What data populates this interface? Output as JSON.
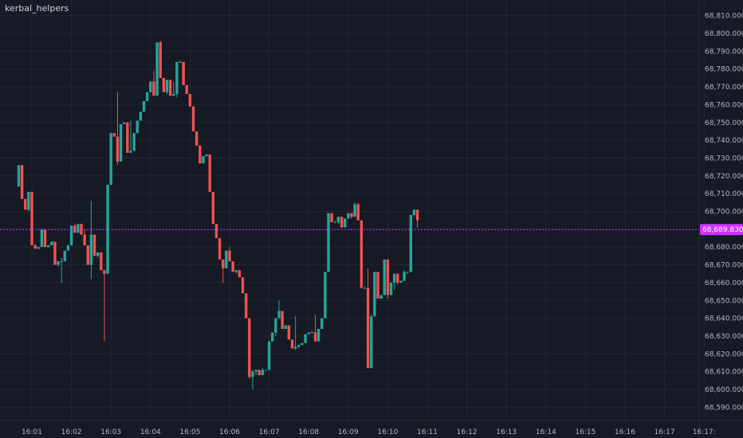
{
  "chart_data": {
    "type": "candlestick",
    "title": "kerbal_helpers",
    "xlabel": "",
    "ylabel": "",
    "ylim": [
      68585,
      68815
    ],
    "y_ticks": [
      "68,590.000",
      "68,600.000",
      "68,610.000",
      "68,620.000",
      "68,630.000",
      "68,640.000",
      "68,650.000",
      "68,660.000",
      "68,670.000",
      "68,680.000",
      "68,690.000",
      "68,700.000",
      "68,710.000",
      "68,720.000",
      "68,730.000",
      "68,740.000",
      "68,750.000",
      "68,760.000",
      "68,770.000",
      "68,780.000",
      "68,790.000",
      "68,800.000",
      "68,810.000"
    ],
    "x_ticks": [
      "16:01",
      "16:02",
      "16:03",
      "16:04",
      "16:05",
      "16:06",
      "16:07",
      "16:08",
      "16:09",
      "16:10",
      "16:11",
      "16:12",
      "16:13",
      "16:14",
      "16:15",
      "16:16",
      "16:17",
      "16:17:"
    ],
    "grid": true,
    "current_price": 68689.83,
    "current_price_label": "68,689.830",
    "colors": {
      "up": "#26a69a",
      "down": "#ef5350",
      "price_line": "#cc33ff",
      "background": "#161a25",
      "grid": "#222632"
    },
    "candles": [
      {
        "time": "16:00:40",
        "open": 68714,
        "high": 68726,
        "low": 68714,
        "close": 68726
      },
      {
        "time": "16:00:45",
        "open": 68726,
        "high": 68726,
        "low": 68707,
        "close": 68707
      },
      {
        "time": "16:00:50",
        "open": 68707,
        "high": 68707,
        "low": 68701,
        "close": 68701
      },
      {
        "time": "16:00:55",
        "open": 68701,
        "high": 68711,
        "low": 68700,
        "close": 68711
      },
      {
        "time": "16:01:00",
        "open": 68711,
        "high": 68711,
        "low": 68681,
        "close": 68681
      },
      {
        "time": "16:01:05",
        "open": 68681,
        "high": 68682,
        "low": 68679,
        "close": 68679
      },
      {
        "time": "16:01:10",
        "open": 68679,
        "high": 68680,
        "low": 68679,
        "close": 68680
      },
      {
        "time": "16:01:15",
        "open": 68680,
        "high": 68690,
        "low": 68680,
        "close": 68690
      },
      {
        "time": "16:01:20",
        "open": 68690,
        "high": 68690,
        "low": 68680,
        "close": 68680
      },
      {
        "time": "16:01:25",
        "open": 68680,
        "high": 68681,
        "low": 68680,
        "close": 68681
      },
      {
        "time": "16:01:30",
        "open": 68681,
        "high": 68683,
        "low": 68681,
        "close": 68683
      },
      {
        "time": "16:01:35",
        "open": 68683,
        "high": 68683,
        "low": 68670,
        "close": 68670
      },
      {
        "time": "16:01:40",
        "open": 68670,
        "high": 68672,
        "low": 68669,
        "close": 68672
      },
      {
        "time": "16:01:45",
        "open": 68672,
        "high": 68674,
        "low": 68660,
        "close": 68672
      },
      {
        "time": "16:01:50",
        "open": 68672,
        "high": 68678,
        "low": 68672,
        "close": 68678
      },
      {
        "time": "16:01:55",
        "open": 68678,
        "high": 68681,
        "low": 68678,
        "close": 68681
      },
      {
        "time": "16:02:00",
        "open": 68681,
        "high": 68692,
        "low": 68681,
        "close": 68692
      },
      {
        "time": "16:02:05",
        "open": 68692,
        "high": 68693,
        "low": 68688,
        "close": 68688
      },
      {
        "time": "16:02:10",
        "open": 68688,
        "high": 68693,
        "low": 68688,
        "close": 68693
      },
      {
        "time": "16:02:15",
        "open": 68693,
        "high": 68693,
        "low": 68687,
        "close": 68687
      },
      {
        "time": "16:02:20",
        "open": 68687,
        "high": 68690,
        "low": 68681,
        "close": 68681
      },
      {
        "time": "16:02:25",
        "open": 68681,
        "high": 68681,
        "low": 68670,
        "close": 68670
      },
      {
        "time": "16:02:30",
        "open": 68670,
        "high": 68706,
        "low": 68662,
        "close": 68687
      },
      {
        "time": "16:02:35",
        "open": 68687,
        "high": 68687,
        "low": 68675,
        "close": 68675
      },
      {
        "time": "16:02:40",
        "open": 68675,
        "high": 68677,
        "low": 68674,
        "close": 68677
      },
      {
        "time": "16:02:45",
        "open": 68677,
        "high": 68677,
        "low": 68667,
        "close": 68667
      },
      {
        "time": "16:02:50",
        "open": 68667,
        "high": 68667,
        "low": 68627,
        "close": 68665
      },
      {
        "time": "16:02:55",
        "open": 68665,
        "high": 68715,
        "low": 68665,
        "close": 68715
      },
      {
        "time": "16:03:00",
        "open": 68715,
        "high": 68744,
        "low": 68715,
        "close": 68744
      },
      {
        "time": "16:03:05",
        "open": 68744,
        "high": 68744,
        "low": 68742,
        "close": 68742
      },
      {
        "time": "16:03:10",
        "open": 68742,
        "high": 68767,
        "low": 68726,
        "close": 68728
      },
      {
        "time": "16:03:15",
        "open": 68728,
        "high": 68749,
        "low": 68728,
        "close": 68749
      },
      {
        "time": "16:03:20",
        "open": 68749,
        "high": 68750,
        "low": 68749,
        "close": 68750
      },
      {
        "time": "16:03:25",
        "open": 68750,
        "high": 68750,
        "low": 68733,
        "close": 68733
      },
      {
        "time": "16:03:30",
        "open": 68733,
        "high": 68751,
        "low": 68733,
        "close": 68734
      },
      {
        "time": "16:03:35",
        "open": 68734,
        "high": 68744,
        "low": 68734,
        "close": 68744
      },
      {
        "time": "16:03:40",
        "open": 68744,
        "high": 68751,
        "low": 68744,
        "close": 68751
      },
      {
        "time": "16:03:45",
        "open": 68751,
        "high": 68756,
        "low": 68751,
        "close": 68756
      },
      {
        "time": "16:03:50",
        "open": 68756,
        "high": 68762,
        "low": 68756,
        "close": 68762
      },
      {
        "time": "16:03:55",
        "open": 68762,
        "high": 68767,
        "low": 68762,
        "close": 68767
      },
      {
        "time": "16:04:00",
        "open": 68767,
        "high": 68773,
        "low": 68767,
        "close": 68773
      },
      {
        "time": "16:04:05",
        "open": 68773,
        "high": 68779,
        "low": 68765,
        "close": 68765
      },
      {
        "time": "16:04:10",
        "open": 68765,
        "high": 68795,
        "low": 68765,
        "close": 68795
      },
      {
        "time": "16:04:15",
        "open": 68795,
        "high": 68796,
        "low": 68775,
        "close": 68775
      },
      {
        "time": "16:04:20",
        "open": 68775,
        "high": 68775,
        "low": 68767,
        "close": 68767
      },
      {
        "time": "16:04:25",
        "open": 68767,
        "high": 68774,
        "low": 68766,
        "close": 68774
      },
      {
        "time": "16:04:30",
        "open": 68774,
        "high": 68774,
        "low": 68765,
        "close": 68765
      },
      {
        "time": "16:04:35",
        "open": 68765,
        "high": 68773,
        "low": 68765,
        "close": 68766
      },
      {
        "time": "16:04:40",
        "open": 68766,
        "high": 68784,
        "low": 68764,
        "close": 68784
      },
      {
        "time": "16:04:45",
        "open": 68784,
        "high": 68785,
        "low": 68784,
        "close": 68784
      },
      {
        "time": "16:04:50",
        "open": 68784,
        "high": 68784,
        "low": 68771,
        "close": 68771
      },
      {
        "time": "16:04:55",
        "open": 68771,
        "high": 68771,
        "low": 68766,
        "close": 68766
      },
      {
        "time": "16:05:00",
        "open": 68766,
        "high": 68766,
        "low": 68759,
        "close": 68759
      },
      {
        "time": "16:05:05",
        "open": 68759,
        "high": 68759,
        "low": 68745,
        "close": 68745
      },
      {
        "time": "16:05:10",
        "open": 68745,
        "high": 68745,
        "low": 68737,
        "close": 68737
      },
      {
        "time": "16:05:15",
        "open": 68737,
        "high": 68737,
        "low": 68727,
        "close": 68727
      },
      {
        "time": "16:05:20",
        "open": 68727,
        "high": 68731,
        "low": 68727,
        "close": 68731
      },
      {
        "time": "16:05:25",
        "open": 68731,
        "high": 68732,
        "low": 68731,
        "close": 68732
      },
      {
        "time": "16:05:30",
        "open": 68732,
        "high": 68732,
        "low": 68711,
        "close": 68711
      },
      {
        "time": "16:05:35",
        "open": 68711,
        "high": 68711,
        "low": 68693,
        "close": 68693
      },
      {
        "time": "16:05:40",
        "open": 68693,
        "high": 68693,
        "low": 68685,
        "close": 68685
      },
      {
        "time": "16:05:45",
        "open": 68685,
        "high": 68685,
        "low": 68673,
        "close": 68673
      },
      {
        "time": "16:05:50",
        "open": 68673,
        "high": 68673,
        "low": 68660,
        "close": 68668
      },
      {
        "time": "16:05:55",
        "open": 68668,
        "high": 68678,
        "low": 68668,
        "close": 68678
      },
      {
        "time": "16:06:00",
        "open": 68678,
        "high": 68680,
        "low": 68672,
        "close": 68672
      },
      {
        "time": "16:06:05",
        "open": 68672,
        "high": 68672,
        "low": 68666,
        "close": 68666
      },
      {
        "time": "16:06:10",
        "open": 68666,
        "high": 68667,
        "low": 68665,
        "close": 68667
      },
      {
        "time": "16:06:15",
        "open": 68667,
        "high": 68667,
        "low": 68663,
        "close": 68663
      },
      {
        "time": "16:06:20",
        "open": 68663,
        "high": 68663,
        "low": 68654,
        "close": 68654
      },
      {
        "time": "16:06:25",
        "open": 68654,
        "high": 68654,
        "low": 68640,
        "close": 68640
      },
      {
        "time": "16:06:30",
        "open": 68640,
        "high": 68640,
        "low": 68606,
        "close": 68607
      },
      {
        "time": "16:06:35",
        "open": 68607,
        "high": 68611,
        "low": 68600,
        "close": 68610
      },
      {
        "time": "16:06:40",
        "open": 68610,
        "high": 68611,
        "low": 68608,
        "close": 68611
      },
      {
        "time": "16:06:45",
        "open": 68611,
        "high": 68611,
        "low": 68608,
        "close": 68608
      },
      {
        "time": "16:06:50",
        "open": 68608,
        "high": 68612,
        "low": 68608,
        "close": 68611
      },
      {
        "time": "16:06:55",
        "open": 68611,
        "high": 68611,
        "low": 68611,
        "close": 68611
      },
      {
        "time": "16:07:00",
        "open": 68611,
        "high": 68627,
        "low": 68611,
        "close": 68627
      },
      {
        "time": "16:07:05",
        "open": 68627,
        "high": 68632,
        "low": 68627,
        "close": 68632
      },
      {
        "time": "16:07:10",
        "open": 68632,
        "high": 68640,
        "low": 68630,
        "close": 68640
      },
      {
        "time": "16:07:15",
        "open": 68640,
        "high": 68650,
        "low": 68640,
        "close": 68644
      },
      {
        "time": "16:07:20",
        "open": 68644,
        "high": 68644,
        "low": 68634,
        "close": 68634
      },
      {
        "time": "16:07:25",
        "open": 68634,
        "high": 68636,
        "low": 68634,
        "close": 68636
      },
      {
        "time": "16:07:30",
        "open": 68636,
        "high": 68636,
        "low": 68628,
        "close": 68628
      },
      {
        "time": "16:07:35",
        "open": 68628,
        "high": 68628,
        "low": 68623,
        "close": 68623
      },
      {
        "time": "16:07:40",
        "open": 68623,
        "high": 68641,
        "low": 68622,
        "close": 68624
      },
      {
        "time": "16:07:45",
        "open": 68624,
        "high": 68625,
        "low": 68623,
        "close": 68625
      },
      {
        "time": "16:07:50",
        "open": 68625,
        "high": 68626,
        "low": 68625,
        "close": 68626
      },
      {
        "time": "16:07:55",
        "open": 68626,
        "high": 68631,
        "low": 68626,
        "close": 68631
      },
      {
        "time": "16:08:00",
        "open": 68631,
        "high": 68632,
        "low": 68631,
        "close": 68632
      },
      {
        "time": "16:08:05",
        "open": 68632,
        "high": 68633,
        "low": 68632,
        "close": 68632
      },
      {
        "time": "16:08:10",
        "open": 68632,
        "high": 68642,
        "low": 68627,
        "close": 68627
      },
      {
        "time": "16:08:15",
        "open": 68627,
        "high": 68634,
        "low": 68627,
        "close": 68634
      },
      {
        "time": "16:08:20",
        "open": 68634,
        "high": 68640,
        "low": 68634,
        "close": 68640
      },
      {
        "time": "16:08:25",
        "open": 68640,
        "high": 68666,
        "low": 68640,
        "close": 68666
      },
      {
        "time": "16:08:30",
        "open": 68666,
        "high": 68699,
        "low": 68666,
        "close": 68699
      },
      {
        "time": "16:08:35",
        "open": 68699,
        "high": 68699,
        "low": 68694,
        "close": 68694
      },
      {
        "time": "16:08:40",
        "open": 68694,
        "high": 68695,
        "low": 68694,
        "close": 68694
      },
      {
        "time": "16:08:45",
        "open": 68694,
        "high": 68697,
        "low": 68693,
        "close": 68697
      },
      {
        "time": "16:08:50",
        "open": 68697,
        "high": 68697,
        "low": 68691,
        "close": 68691
      },
      {
        "time": "16:08:55",
        "open": 68691,
        "high": 68696,
        "low": 68691,
        "close": 68696
      },
      {
        "time": "16:09:00",
        "open": 68696,
        "high": 68699,
        "low": 68696,
        "close": 68699
      },
      {
        "time": "16:09:05",
        "open": 68699,
        "high": 68699,
        "low": 68696,
        "close": 68697
      },
      {
        "time": "16:09:10",
        "open": 68697,
        "high": 68705,
        "low": 68697,
        "close": 68704
      },
      {
        "time": "16:09:15",
        "open": 68704,
        "high": 68705,
        "low": 68695,
        "close": 68695
      },
      {
        "time": "16:09:20",
        "open": 68695,
        "high": 68695,
        "low": 68657,
        "close": 68657
      },
      {
        "time": "16:09:25",
        "open": 68657,
        "high": 68658,
        "low": 68657,
        "close": 68657
      },
      {
        "time": "16:09:30",
        "open": 68657,
        "high": 68668,
        "low": 68612,
        "close": 68612
      },
      {
        "time": "16:09:35",
        "open": 68612,
        "high": 68642,
        "low": 68612,
        "close": 68641
      },
      {
        "time": "16:09:40",
        "open": 68641,
        "high": 68666,
        "low": 68641,
        "close": 68666
      },
      {
        "time": "16:09:45",
        "open": 68666,
        "high": 68666,
        "low": 68651,
        "close": 68651
      },
      {
        "time": "16:09:50",
        "open": 68651,
        "high": 68653,
        "low": 68651,
        "close": 68653
      },
      {
        "time": "16:09:55",
        "open": 68653,
        "high": 68673,
        "low": 68653,
        "close": 68673
      },
      {
        "time": "16:10:00",
        "open": 68673,
        "high": 68673,
        "low": 68651,
        "close": 68653
      },
      {
        "time": "16:10:05",
        "open": 68653,
        "high": 68660,
        "low": 68653,
        "close": 68660
      },
      {
        "time": "16:10:10",
        "open": 68660,
        "high": 68665,
        "low": 68656,
        "close": 68665
      },
      {
        "time": "16:10:15",
        "open": 68665,
        "high": 68665,
        "low": 68659,
        "close": 68660
      },
      {
        "time": "16:10:20",
        "open": 68660,
        "high": 68661,
        "low": 68660,
        "close": 68661
      },
      {
        "time": "16:10:25",
        "open": 68661,
        "high": 68667,
        "low": 68661,
        "close": 68666
      },
      {
        "time": "16:10:30",
        "open": 68666,
        "high": 68666,
        "low": 68665,
        "close": 68666
      },
      {
        "time": "16:10:35",
        "open": 68666,
        "high": 68698,
        "low": 68666,
        "close": 68698
      },
      {
        "time": "16:10:40",
        "open": 68698,
        "high": 68701,
        "low": 68697,
        "close": 68701
      },
      {
        "time": "16:10:45",
        "open": 68701,
        "high": 68701,
        "low": 68691,
        "close": 68695
      }
    ]
  }
}
